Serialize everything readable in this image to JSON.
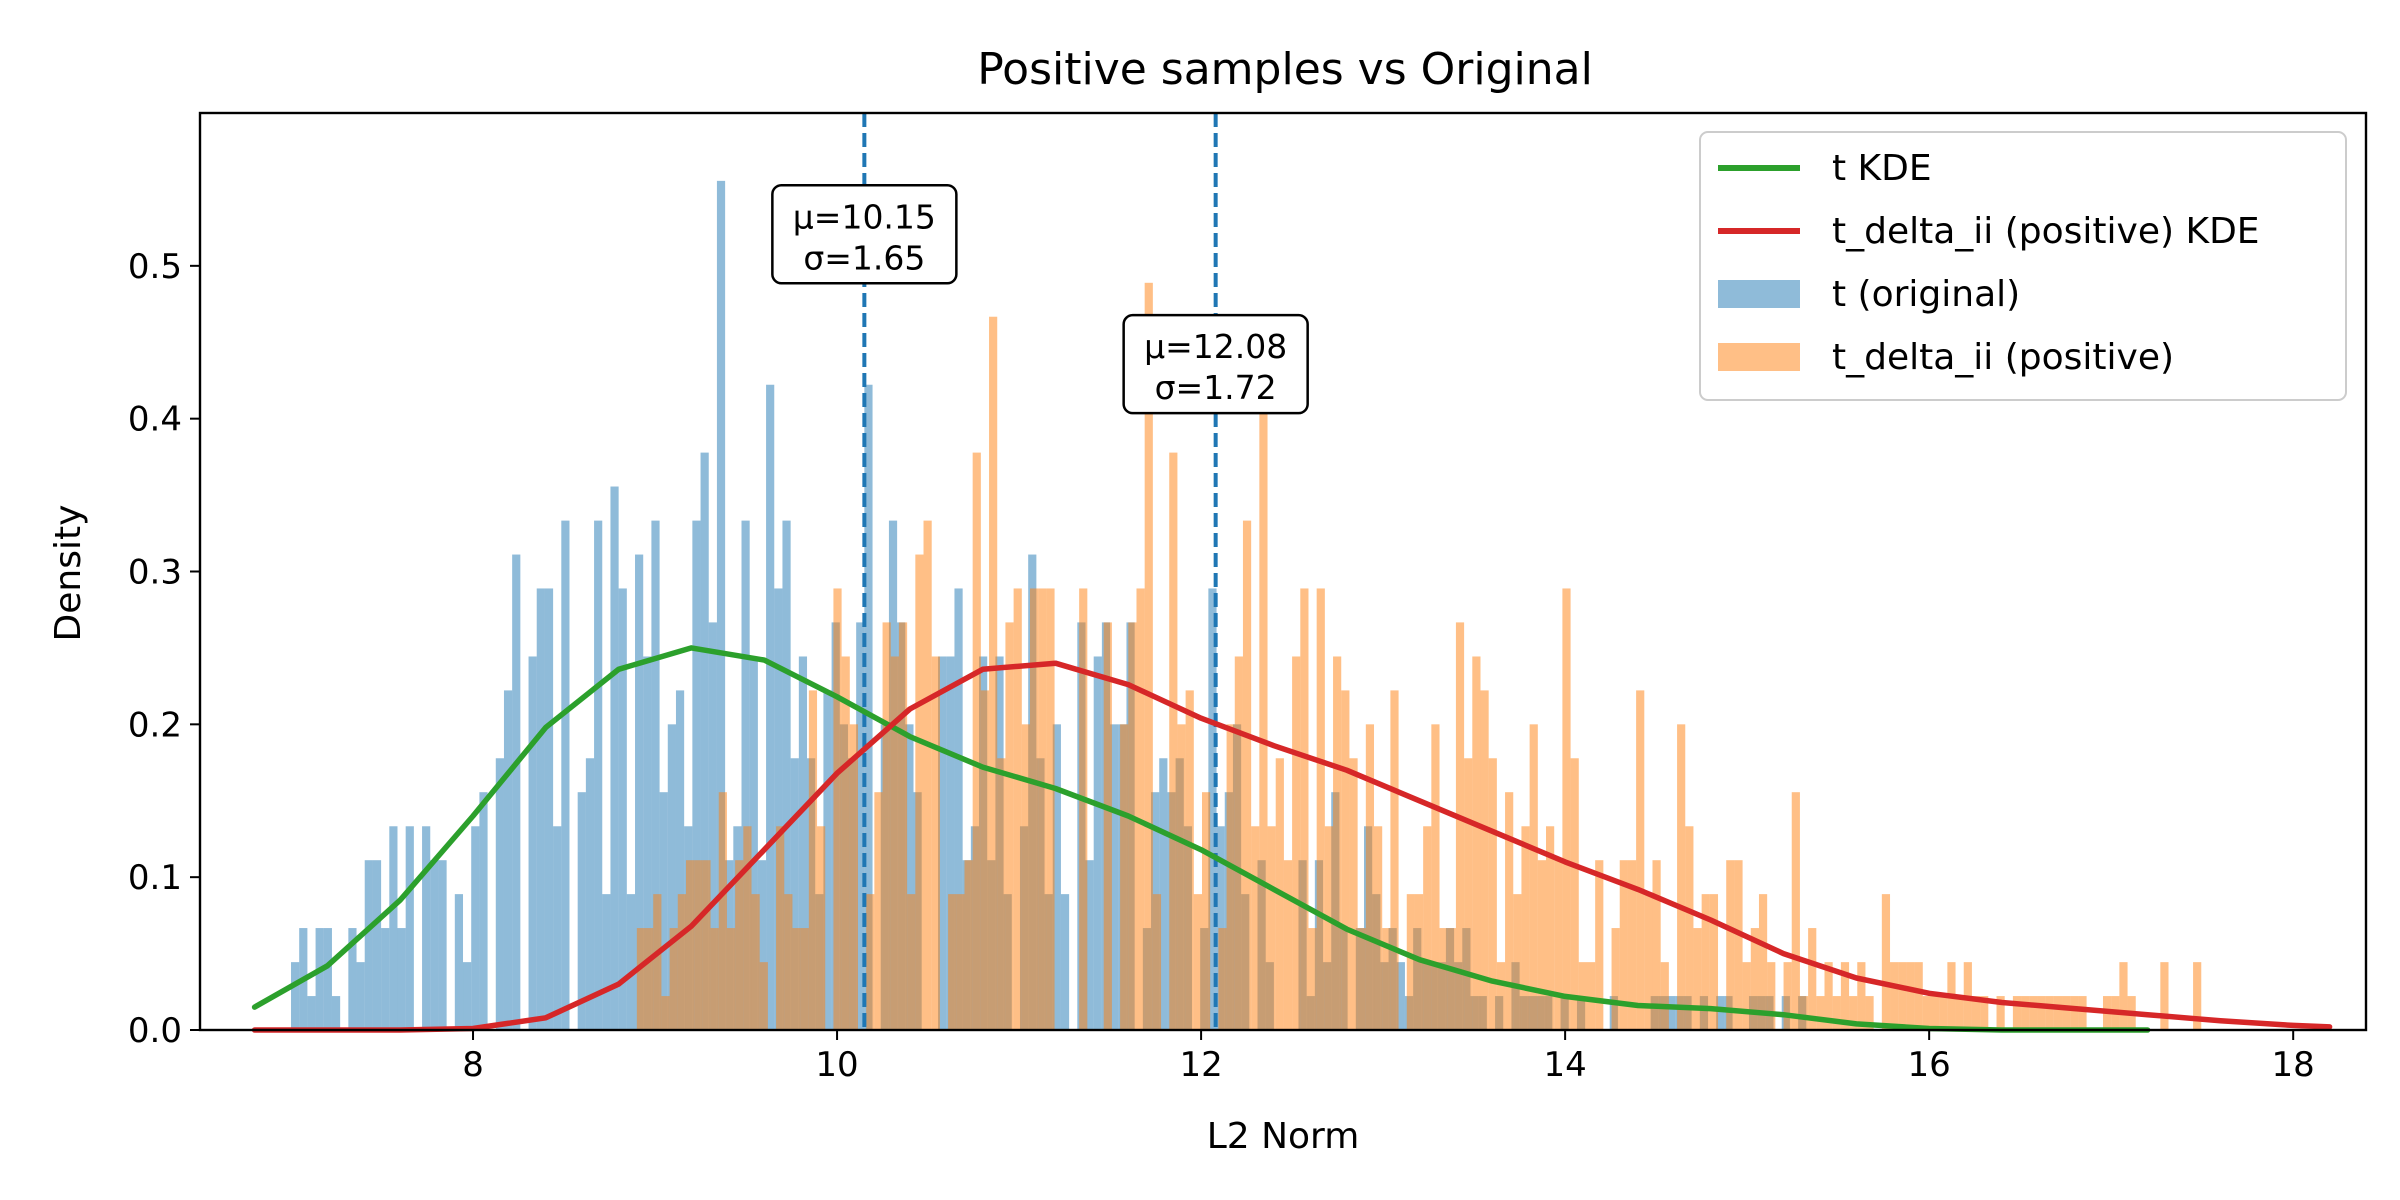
{
  "chart_data": {
    "type": "histogram",
    "title": "Positive samples vs Original",
    "xlabel": "L2 Norm",
    "ylabel": "Density",
    "xlim": [
      6.5,
      18.4
    ],
    "ylim": [
      0.0,
      0.6
    ],
    "x_ticks": [
      8,
      10,
      12,
      14,
      16,
      18
    ],
    "x_tick_labels": [
      "8",
      "10",
      "12",
      "14",
      "16",
      "18"
    ],
    "y_ticks": [
      0.0,
      0.1,
      0.2,
      0.3,
      0.4,
      0.5
    ],
    "y_tick_labels": [
      "0.0",
      "0.1",
      "0.2",
      "0.3",
      "0.4",
      "0.5"
    ],
    "legend_position": "top-right",
    "bin_width": 0.045,
    "series": [
      {
        "name": "t KDE",
        "kind": "line",
        "color": "#2ca02c",
        "x": [
          6.8,
          7.2,
          7.6,
          8.0,
          8.4,
          8.8,
          9.2,
          9.6,
          10.0,
          10.4,
          10.8,
          11.2,
          11.6,
          12.0,
          12.4,
          12.8,
          13.2,
          13.6,
          14.0,
          14.4,
          14.8,
          15.2,
          15.6,
          16.0,
          16.4,
          16.8,
          17.2
        ],
        "y": [
          0.015,
          0.042,
          0.085,
          0.14,
          0.198,
          0.236,
          0.25,
          0.242,
          0.218,
          0.192,
          0.172,
          0.158,
          0.14,
          0.118,
          0.092,
          0.066,
          0.046,
          0.032,
          0.022,
          0.016,
          0.014,
          0.01,
          0.004,
          0.001,
          0.0,
          0.0,
          0.0
        ]
      },
      {
        "name": "t_delta_ii (positive) KDE",
        "kind": "line",
        "color": "#d62728",
        "x": [
          6.8,
          7.2,
          7.6,
          8.0,
          8.4,
          8.8,
          9.2,
          9.6,
          10.0,
          10.4,
          10.8,
          11.2,
          11.6,
          12.0,
          12.4,
          12.8,
          13.2,
          13.6,
          14.0,
          14.4,
          14.8,
          15.2,
          15.6,
          16.0,
          16.4,
          16.8,
          17.2,
          17.6,
          18.0,
          18.2
        ],
        "y": [
          0.0,
          0.0,
          0.0,
          0.001,
          0.008,
          0.03,
          0.068,
          0.118,
          0.168,
          0.21,
          0.236,
          0.24,
          0.226,
          0.204,
          0.186,
          0.17,
          0.15,
          0.13,
          0.11,
          0.092,
          0.072,
          0.05,
          0.034,
          0.024,
          0.018,
          0.014,
          0.01,
          0.006,
          0.003,
          0.002
        ]
      },
      {
        "name": "t (original)",
        "kind": "histogram",
        "color": "#1f77b4",
        "mean": 10.15,
        "std": 1.65,
        "range": [
          7.0,
          15.6
        ]
      },
      {
        "name": "t_delta_ii (positive)",
        "kind": "histogram",
        "color": "#ff7f0e",
        "mean": 12.08,
        "std": 1.72,
        "range": [
          8.9,
          18.0
        ]
      }
    ],
    "vlines": [
      {
        "x": 10.15,
        "color": "#1f77b4",
        "style": "dashed"
      },
      {
        "x": 12.08,
        "color": "#1f77b4",
        "style": "dashed"
      }
    ],
    "annotations": [
      {
        "line1": "μ=10.15",
        "line2": "σ=1.65",
        "x": 10.15,
        "y": 0.52
      },
      {
        "line1": "μ=12.08",
        "line2": "σ=1.72",
        "x": 12.08,
        "y": 0.435
      }
    ],
    "legend": [
      {
        "label": "t KDE",
        "kind": "line",
        "color": "#2ca02c"
      },
      {
        "label": "t_delta_ii (positive) KDE",
        "kind": "line",
        "color": "#d62728"
      },
      {
        "label": "t (original)",
        "kind": "patch",
        "color": "#1f77b4"
      },
      {
        "label": "t_delta_ii (positive)",
        "kind": "patch",
        "color": "#ff7f0e"
      }
    ]
  }
}
